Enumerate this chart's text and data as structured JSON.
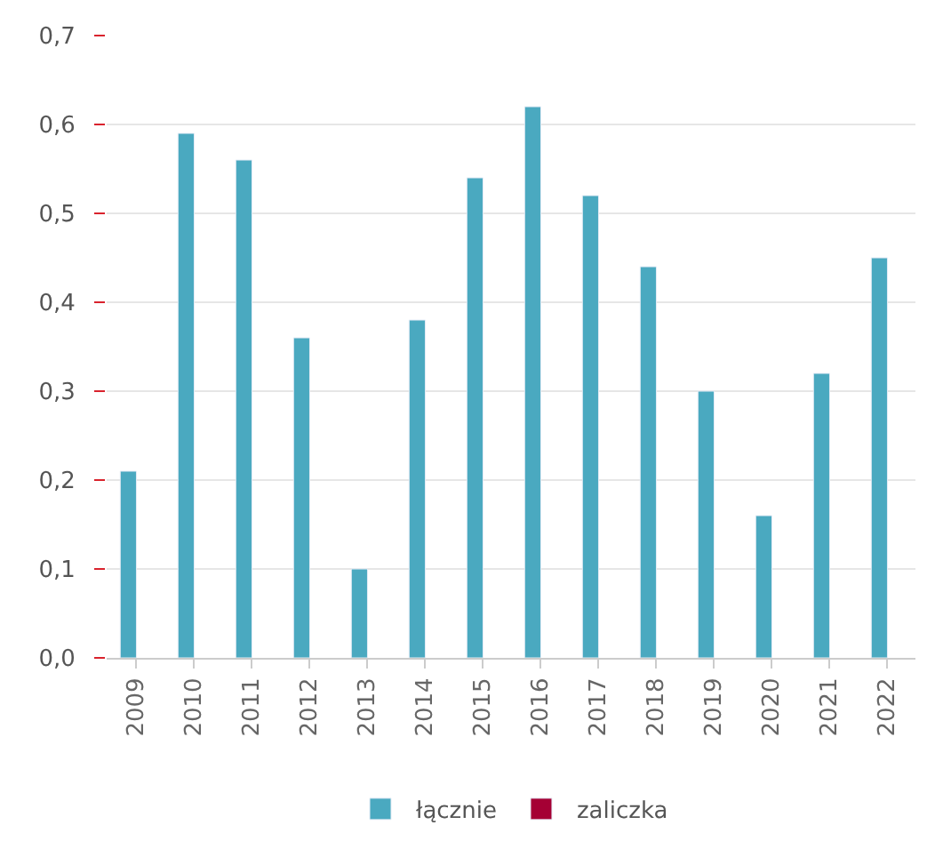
{
  "chart_data": {
    "type": "bar",
    "categories": [
      "2009",
      "2010",
      "2011",
      "2012",
      "2013",
      "2014",
      "2015",
      "2016",
      "2017",
      "2018",
      "2019",
      "2020",
      "2021",
      "2022"
    ],
    "series": [
      {
        "name": "łącznie",
        "color": "#4aa9c0",
        "values": [
          0.21,
          0.59,
          0.56,
          0.36,
          0.1,
          0.38,
          0.54,
          0.62,
          0.52,
          0.44,
          0.3,
          0.16,
          0.32,
          0.45
        ]
      },
      {
        "name": "zaliczka",
        "color": "#a50034",
        "values": [
          null,
          null,
          null,
          null,
          null,
          null,
          null,
          null,
          null,
          null,
          null,
          null,
          null,
          null
        ]
      }
    ],
    "ylim": [
      0,
      0.7
    ],
    "yticks": [
      {
        "value": 0,
        "label": "0,0"
      },
      {
        "value": 0.1,
        "label": "0,1"
      },
      {
        "value": 0.2,
        "label": "0,2"
      },
      {
        "value": 0.3,
        "label": "0,3"
      },
      {
        "value": 0.4,
        "label": "0,4"
      },
      {
        "value": 0.5,
        "label": "0,5"
      },
      {
        "value": 0.6,
        "label": "0,6"
      },
      {
        "value": 0.7,
        "label": "0,7"
      }
    ],
    "grid": "y",
    "legend": "bottom"
  }
}
